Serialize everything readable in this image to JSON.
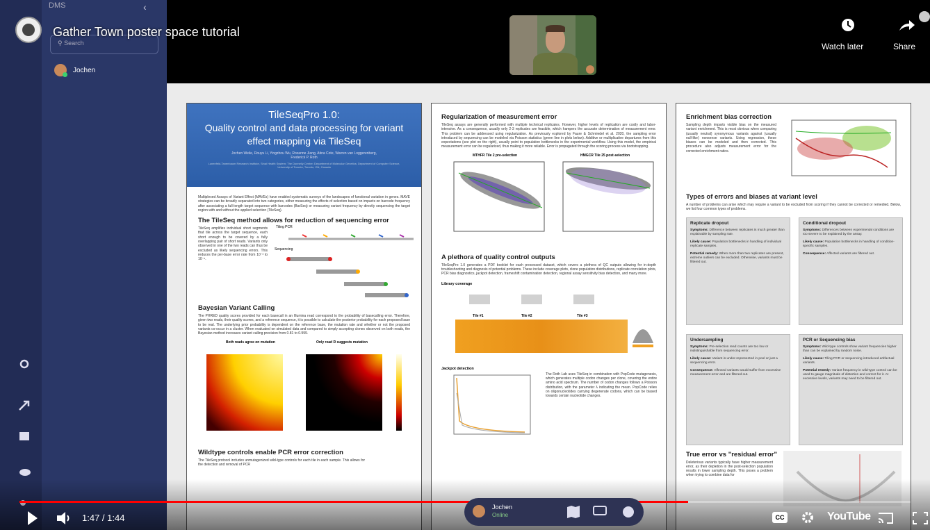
{
  "sidebar": {
    "org": "DMS",
    "search": "Search",
    "user": "Jochen"
  },
  "video": {
    "title": "Gather Town poster space tutorial",
    "watch_later": "Watch later",
    "share": "Share",
    "time": "1:47 / 1:44",
    "cc": "CC",
    "brand": "YouTube"
  },
  "gather_bar": {
    "name": "Jochen",
    "status": "Online"
  },
  "poster": {
    "title": "TileSeqPro 1.0:",
    "subtitle": "Quality control and data processing for variant effect mapping via TileSeq",
    "authors": "Jochen Weile, Rouyu Li, Yingzhou Wu, Roxanne Jiang, Atina Cote, Warren van Loggerenberg, Frederick P. Roth",
    "affiliation": "Lunenfeld-Tanenbaum Research Institute, Sinai Health System; The Donnelly Centre; Department of Molecular Genetics; Department of Computer Science, University of Toronto, Toronto, ON, Canada",
    "intro": "Multiplexed Assays of Variant Effect (MAVEs) have enabled systematic surveys of the landscapes of functional variation in genes. MAVE strategies can be broadly separated into two categories, either measuring the effects of selection based on impacts on barcode frequency after associating a full-length target sequence with barcodes (BarSeq) or measuring variant frequency by directly sequencing the target region with and without the applied selection (TileSeq).",
    "tileseq": {
      "heading": "The TileSeq method allows for reduction of sequencing error",
      "text": "TileSeq amplifies individual short segments that tile across the target sequence, each short enough to be covered by a fully overlapping pair of short reads. Variants only observed in one of the two reads can thus be excluded as likely sequencing errors. This reduces the per-base error rate from 10⁻³ to 10⁻⁶.",
      "label_pcr": "Tiling PCR",
      "label_seq": "Sequencing"
    },
    "bayes": {
      "heading": "Bayesian Variant Calling",
      "text": "The PHRED quality scores provided for each basecall in an Illumina read correspond to the probability of basecalling error. Therefore, given two reads, their quality scores, and a reference sequence, it is possible to calculate the posterior probability for each proposed base to be real. The underlying prior probability is dependent on the reference base, the mutation rate and whether or not the proposed variants co-occur in a cluster. When evaluated on simulated data and compared to simply accepting clones observed on both reads, the Bayesian method increases variant calling precision from 0.81 to 0.999.",
      "plot1": "Both reads agree on mutation",
      "plot2": "Only read R suggests mutation"
    },
    "wildtype": {
      "heading": "Wildtype controls enable PCR error correction",
      "text": "The TileSeq protocol includes unmutagenized wild-type controls for each tile in each sample. This allows for the detection and removal of PCR"
    },
    "regularization": {
      "heading": "Regularization of measurement error",
      "text": "TileSeq assays are generally performed with multiple technical replicates. However, higher levels of replication are costly and labor-intensive. As a consequence, usually only 2-3 replicates are feasible, which hampers the accurate determination of measurement error. This problem can be addressed using regularization. As previously explored by Faure & Schmiedel et al. 2020, the sampling error introduced by sequencing can be modeled via Poisson statistics (green line in plots below). Additive or multiplicative departures from this expectations (see plot on the right), usually point to population bottlenecks in the experimental workflow. Using this model, the empirical measurement error can be regularized, thus making it more reliable. Error is propagated through the scoring process via bootstrapping.",
      "plot1": "MTHFR Tile 2 pre-selection",
      "plot2": "HMGCR Tile 25 post-selection"
    },
    "qc": {
      "heading": "A plethora of quality control outputs",
      "text": "TileSeqPro 1.0 generates a PDF booklet for each processed dataset, which covers a plethora of QC outputs allowing for in-depth troubleshooting and diagnosis of potential problems. These include coverage plots, clone population distributions, replicate correlation plots, PCR bias diagnostics, jackpot detection, frameshift contamination detection, regional assay sensitivity bias detection, and many more.",
      "coverage": "Library coverage",
      "tiles": [
        "Tile #1",
        "Tile #2",
        "Tile #3"
      ],
      "jackpot": "Jackpot detection",
      "jackpot_text": "The Roth Lab uses TileSeq in combination with PopCode mutagenesis, which generates multiple codon changes per clone, covering the entire amino acid spectrum. The number of codon changes follows a Poisson distribution, with the parameter λ indicating the mean. PopCode relies on oligonucleotides carrying degenerate codons, which can be biased towards certain nucleotide changes."
    },
    "enrichment": {
      "heading": "Enrichment bias correction",
      "text": "Sampling depth imparts visible bias on the measured variant enrichment. This is most obvious when comparing (usually neutral) synonymous variants against (usually null-like) nonsense variants. Using regression, these biases can be modeled and then corrected. This procedure also adjusts measurement error for the corrected enrichment ratios."
    },
    "types": {
      "heading": "Types of errors and biases at variant level",
      "text": "A number of problems can arise which may require a variant to be excluded from scoring if they cannot be corrected or remedied. Below, we list four common types of problems.",
      "boxes": [
        {
          "title": "Replicate dropout",
          "items": [
            {
              "label": "Symptoms:",
              "text": "Difference between replicates is much greater than explainable by sampling rate."
            },
            {
              "label": "Likely cause:",
              "text": "Population bottlenecks in handling of individual replicate samples."
            },
            {
              "label": "Potential remedy:",
              "text": "When more than two replicates are present, extreme outliers can be excluded. Otherwise, variants must be filtered out."
            }
          ]
        },
        {
          "title": "Conditional dropout",
          "items": [
            {
              "label": "Symptoms:",
              "text": "Differences between experimental conditions are too severe to be explained by the assay."
            },
            {
              "label": "Likely cause:",
              "text": "Population bottlenecks in handling of condition-specific samples."
            },
            {
              "label": "Consequence:",
              "text": "Affected variants are filtered out."
            }
          ]
        },
        {
          "title": "Undersampling",
          "items": [
            {
              "label": "Symptoms:",
              "text": "Pre-selection read counts are too low or indistinguishable from sequencing error."
            },
            {
              "label": "Likely cause:",
              "text": "Variant is under-represented in pool or just a sequencing error."
            },
            {
              "label": "Consequence:",
              "text": "Affected variants would suffer from excessive measurement error and are filtered out."
            }
          ]
        },
        {
          "title": "PCR or Sequencing bias",
          "items": [
            {
              "label": "Symptoms:",
              "text": "Wild-type controls show variant frequencies higher than can be explained by random noise."
            },
            {
              "label": "Likely cause:",
              "text": "Tiling PCR or sequencing introduced artifactual variants."
            },
            {
              "label": "Potential remedy:",
              "text": "Variant frequency in wild-type control can be used to gauge magnitude of distortion and correct for it. At excessive levels, variants may need to be filtered out."
            }
          ]
        }
      ]
    },
    "residual": {
      "heading": "True error vs \"residual error\"",
      "text": "Deleterious variants typically have higher measurement error, as their depletion in the post-selection population results in lower sampling depth. This poses a problem when trying to combine data for"
    }
  }
}
